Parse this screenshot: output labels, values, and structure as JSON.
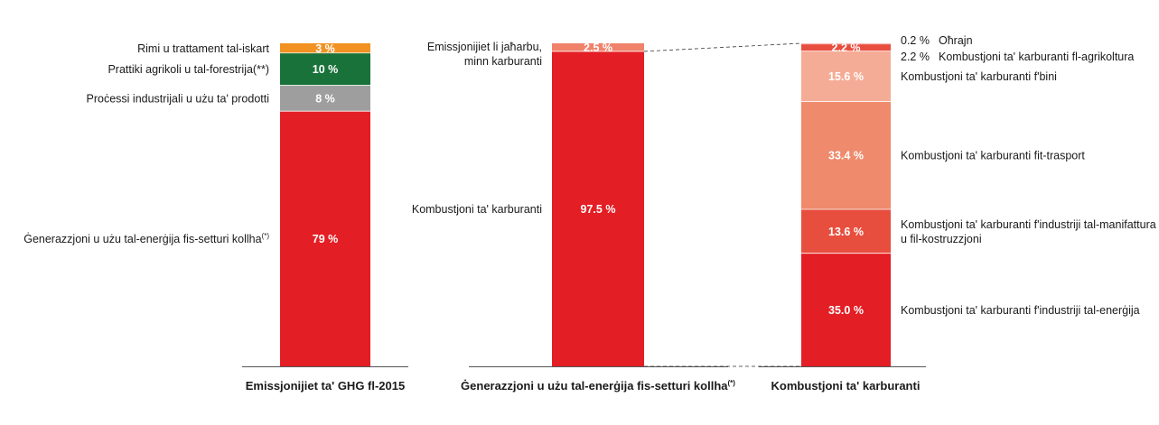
{
  "chart_data": [
    {
      "type": "stacked-bar",
      "xlabel": "Emissjonijiet ta' GHG fl-2015",
      "segments": [
        {
          "name": "Ġenerazzjoni u użu tal-enerġija fis-setturi kollha",
          "sup": "(*)",
          "value": 79,
          "value_label": "79 %",
          "color": "#e31e24"
        },
        {
          "name": "Proċessi industrijali u użu ta' prodotti",
          "value": 8,
          "value_label": "8 %",
          "color": "#9e9e9e"
        },
        {
          "name": "Prattiki agrikoli u tal-forestrija(**)",
          "value": 10,
          "value_label": "10 %",
          "color": "#19723a"
        },
        {
          "name": "Rimi u trattament tal-iskart",
          "value": 3,
          "value_label": "3 %",
          "color": "#f29222"
        }
      ]
    },
    {
      "type": "stacked-bar",
      "xlabel": "Ġenerazzjoni u użu tal-enerġija fis-setturi kollha",
      "xlabel_sup": "(*)",
      "segments": [
        {
          "name": "Kombustjoni ta' karburanti",
          "value": 97.5,
          "value_label": "97.5 %",
          "color": "#e31e24"
        },
        {
          "name": "Emissjonijiet li jaħarbu, minn karburanti",
          "name_lines": [
            "Emissjonijiet li jaħarbu,",
            "minn karburanti"
          ],
          "value": 2.5,
          "value_label": "2.5 %",
          "color": "#f0826a"
        }
      ]
    },
    {
      "type": "stacked-bar",
      "xlabel": "Kombustjoni ta' karburanti",
      "segments": [
        {
          "name": "Kombustjoni ta' karburanti f'industriji tal-enerġija",
          "value": 35.0,
          "value_label": "35.0 %",
          "color": "#e31e24"
        },
        {
          "name": "Kombustjoni ta' karburanti f'industriji tal-manifattura u fil-kostruzzjoni",
          "name_lines": [
            "Kombustjoni ta' karburanti f'industriji tal-manifattura",
            "u fil-kostruzzjoni"
          ],
          "value": 13.6,
          "value_label": "13.6 %",
          "color": "#e84e3e"
        },
        {
          "name": "Kombustjoni ta' karburanti fit-trasport",
          "value": 33.4,
          "value_label": "33.4 %",
          "color": "#ef8a6c"
        },
        {
          "name": "Kombustjoni ta' karburanti f'bini",
          "value": 15.6,
          "value_label": "15.6 %",
          "color": "#f5ac96"
        },
        {
          "name": "Kombustjoni ta' karburanti fl-agrikoltura",
          "value": 2.2,
          "value_label": "2.2 %",
          "color": "#e84e3e"
        },
        {
          "name": "Oħrajn",
          "value": 0.2,
          "value_label": "0.2 %",
          "color": "#e84e3e"
        }
      ]
    }
  ]
}
